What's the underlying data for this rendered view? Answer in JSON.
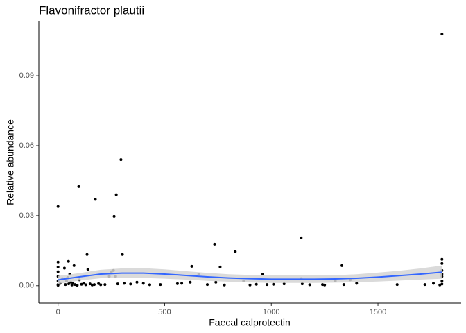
{
  "chart_data": {
    "type": "scatter",
    "title": "Flavonifractor plautii",
    "x_label": "Faecal calprotectin",
    "y_label": "Relative abundance",
    "xlim": [
      -90,
      1890
    ],
    "ylim": [
      -0.0075,
      0.1135
    ],
    "xticks": [
      0,
      500,
      1000,
      1500
    ],
    "yticks": [
      {
        "value": 0,
        "label": "0.00"
      },
      {
        "value": 0.03,
        "label": "0.03"
      },
      {
        "value": 0.06,
        "label": "0.06"
      },
      {
        "value": 0.09,
        "label": "0.09"
      }
    ],
    "color": "#000000",
    "x": [
      1800,
      295,
      97,
      273,
      175,
      0,
      263,
      1140,
      734,
      831,
      302,
      136,
      1800,
      49,
      0,
      627,
      1331,
      760,
      75,
      1800,
      0,
      0,
      0,
      0,
      0,
      0,
      10,
      20,
      30,
      35,
      40,
      45,
      50,
      55,
      60,
      65,
      70,
      80,
      90,
      100,
      110,
      120,
      130,
      140,
      150,
      160,
      170,
      190,
      200,
      220,
      240,
      250,
      260,
      270,
      280,
      310,
      340,
      370,
      400,
      430,
      480,
      560,
      580,
      620,
      660,
      700,
      740,
      780,
      870,
      900,
      930,
      960,
      980,
      1010,
      1060,
      1140,
      1145,
      1180,
      1240,
      1250,
      1300,
      1340,
      1370,
      1400,
      1590,
      1720,
      1760,
      1800,
      1800,
      1800,
      1800,
      1800,
      1790
    ],
    "y": [
      0.1078,
      0.054,
      0.0425,
      0.039,
      0.037,
      0.0339,
      0.0297,
      0.0205,
      0.0178,
      0.0146,
      0.0134,
      0.0134,
      0.0113,
      0.0104,
      0.0101,
      0.0083,
      0.0086,
      0.008,
      0.0086,
      0.0095,
      0.0005,
      0.002,
      0.004,
      0.006,
      0.008,
      0.0002,
      0.001,
      0.003,
      0.0075,
      0.0005,
      0.002,
      0.0035,
      0.0008,
      0.005,
      0.0015,
      0.0003,
      0.001,
      0.0005,
      0.0002,
      0.0025,
      0.0006,
      0.001,
      0.0004,
      0.007,
      0.0008,
      0.0003,
      0.0005,
      0.0009,
      0.0004,
      0.0005,
      0.004,
      0.006,
      0.0065,
      0.004,
      0.0008,
      0.001,
      0.0007,
      0.0015,
      0.001,
      0.0004,
      0.0005,
      0.0009,
      0.001,
      0.0015,
      0.005,
      0.0005,
      0.0015,
      0.0003,
      0.002,
      0.0003,
      0.0006,
      0.005,
      0.0005,
      0.0006,
      0.0008,
      0.003,
      0.0008,
      0.0004,
      0.0005,
      0.0003,
      0.002,
      0.0005,
      0.0025,
      0.001,
      0.0005,
      0.0005,
      0.001,
      0.002,
      0.004,
      0.005,
      0.0007,
      0.0065,
      0.0003
    ],
    "fit": {
      "color": "#3366ff",
      "band_color": "#d3d3d3",
      "x": [
        0,
        100,
        200,
        300,
        400,
        500,
        600,
        700,
        800,
        900,
        1000,
        1100,
        1200,
        1300,
        1400,
        1500,
        1600,
        1700,
        1800
      ],
      "y": [
        0.0025,
        0.0038,
        0.005,
        0.0054,
        0.0054,
        0.005,
        0.0044,
        0.0038,
        0.0033,
        0.003,
        0.0028,
        0.0028,
        0.0028,
        0.0029,
        0.0032,
        0.0037,
        0.0043,
        0.005,
        0.0058
      ],
      "lower": [
        0.0008,
        0.0022,
        0.0032,
        0.0034,
        0.0033,
        0.003,
        0.0026,
        0.0021,
        0.0017,
        0.0014,
        0.0012,
        0.0012,
        0.0012,
        0.0013,
        0.0015,
        0.0018,
        0.0022,
        0.0026,
        0.003
      ],
      "upper": [
        0.0042,
        0.0054,
        0.0068,
        0.0074,
        0.0075,
        0.007,
        0.0062,
        0.0055,
        0.0049,
        0.0046,
        0.0044,
        0.0044,
        0.0044,
        0.0045,
        0.0049,
        0.0056,
        0.0064,
        0.0074,
        0.0086
      ]
    }
  }
}
